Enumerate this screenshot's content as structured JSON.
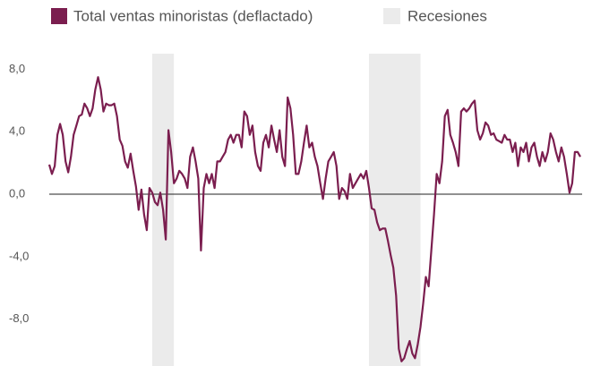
{
  "chart_data": {
    "type": "line",
    "series": [
      {
        "name": "Total ventas minoristas (deflactado)",
        "color": "#7b1e4f",
        "values": [
          1.9,
          1.3,
          1.8,
          3.8,
          4.5,
          3.8,
          2.1,
          1.4,
          2.4,
          3.8,
          4.4,
          5.0,
          5.1,
          5.8,
          5.5,
          5.0,
          5.5,
          6.7,
          7.5,
          6.7,
          5.3,
          5.8,
          5.7,
          5.7,
          5.8,
          5.0,
          3.5,
          3.1,
          2.1,
          1.7,
          2.6,
          1.5,
          0.5,
          -1.0,
          0.3,
          -1.3,
          -2.3,
          0.4,
          0.1,
          -0.5,
          -0.7,
          0.1,
          -1.0,
          -2.9,
          4.1,
          2.7,
          0.7,
          1.0,
          1.5,
          1.3,
          1.0,
          0.4,
          2.4,
          3.0,
          2.1,
          1.0,
          -3.6,
          0.4,
          1.3,
          0.7,
          1.3,
          0.4,
          2.1,
          2.1,
          2.4,
          2.7,
          3.5,
          3.8,
          3.3,
          3.8,
          3.8,
          3.0,
          5.3,
          5.0,
          3.8,
          4.4,
          2.7,
          1.8,
          1.5,
          3.3,
          3.8,
          3.0,
          4.4,
          3.5,
          2.7,
          4.1,
          2.4,
          1.8,
          6.2,
          5.5,
          3.8,
          1.3,
          1.3,
          2.1,
          3.3,
          4.4,
          3.0,
          3.3,
          2.4,
          1.8,
          0.7,
          -0.3,
          1.0,
          2.1,
          2.4,
          2.7,
          1.8,
          -0.3,
          0.4,
          0.2,
          -0.3,
          1.3,
          0.4,
          0.7,
          1.0,
          1.3,
          1.0,
          1.5,
          0.4,
          -0.9,
          -1.0,
          -1.8,
          -2.3,
          -2.2,
          -2.2,
          -3.0,
          -3.9,
          -4.7,
          -6.5,
          -9.9,
          -10.7,
          -10.5,
          -9.9,
          -9.4,
          -10.2,
          -10.5,
          -9.6,
          -8.5,
          -7.0,
          -5.3,
          -5.9,
          -3.6,
          -1.3,
          1.3,
          0.7,
          2.1,
          5.0,
          5.4,
          3.8,
          3.3,
          2.7,
          1.8,
          5.3,
          5.5,
          5.3,
          5.5,
          5.8,
          6.0,
          4.1,
          3.5,
          3.9,
          4.6,
          4.4,
          3.8,
          3.9,
          3.5,
          3.4,
          3.3,
          3.8,
          3.5,
          3.5,
          2.7,
          3.3,
          1.8,
          3.0,
          2.7,
          3.3,
          2.1,
          3.0,
          3.3,
          2.4,
          1.8,
          2.7,
          2.1,
          2.7,
          3.9,
          3.5,
          2.7,
          2.1,
          3.0,
          2.4,
          1.3,
          0.1,
          0.7,
          2.7,
          2.7,
          2.4
        ]
      }
    ],
    "recessions": {
      "name": "Recesiones",
      "color": "#ebebeb",
      "ranges": [
        [
          38,
          46
        ],
        [
          118,
          137
        ]
      ]
    },
    "xlim": [
      0,
      196
    ],
    "ylim": [
      -11,
      9
    ],
    "yticks": [
      {
        "value": 8,
        "label": "8,0"
      },
      {
        "value": 4,
        "label": "4,0"
      },
      {
        "value": 0,
        "label": "0,0"
      },
      {
        "value": -4,
        "label": "-4,0"
      },
      {
        "value": -8,
        "label": "-8,0"
      }
    ]
  }
}
